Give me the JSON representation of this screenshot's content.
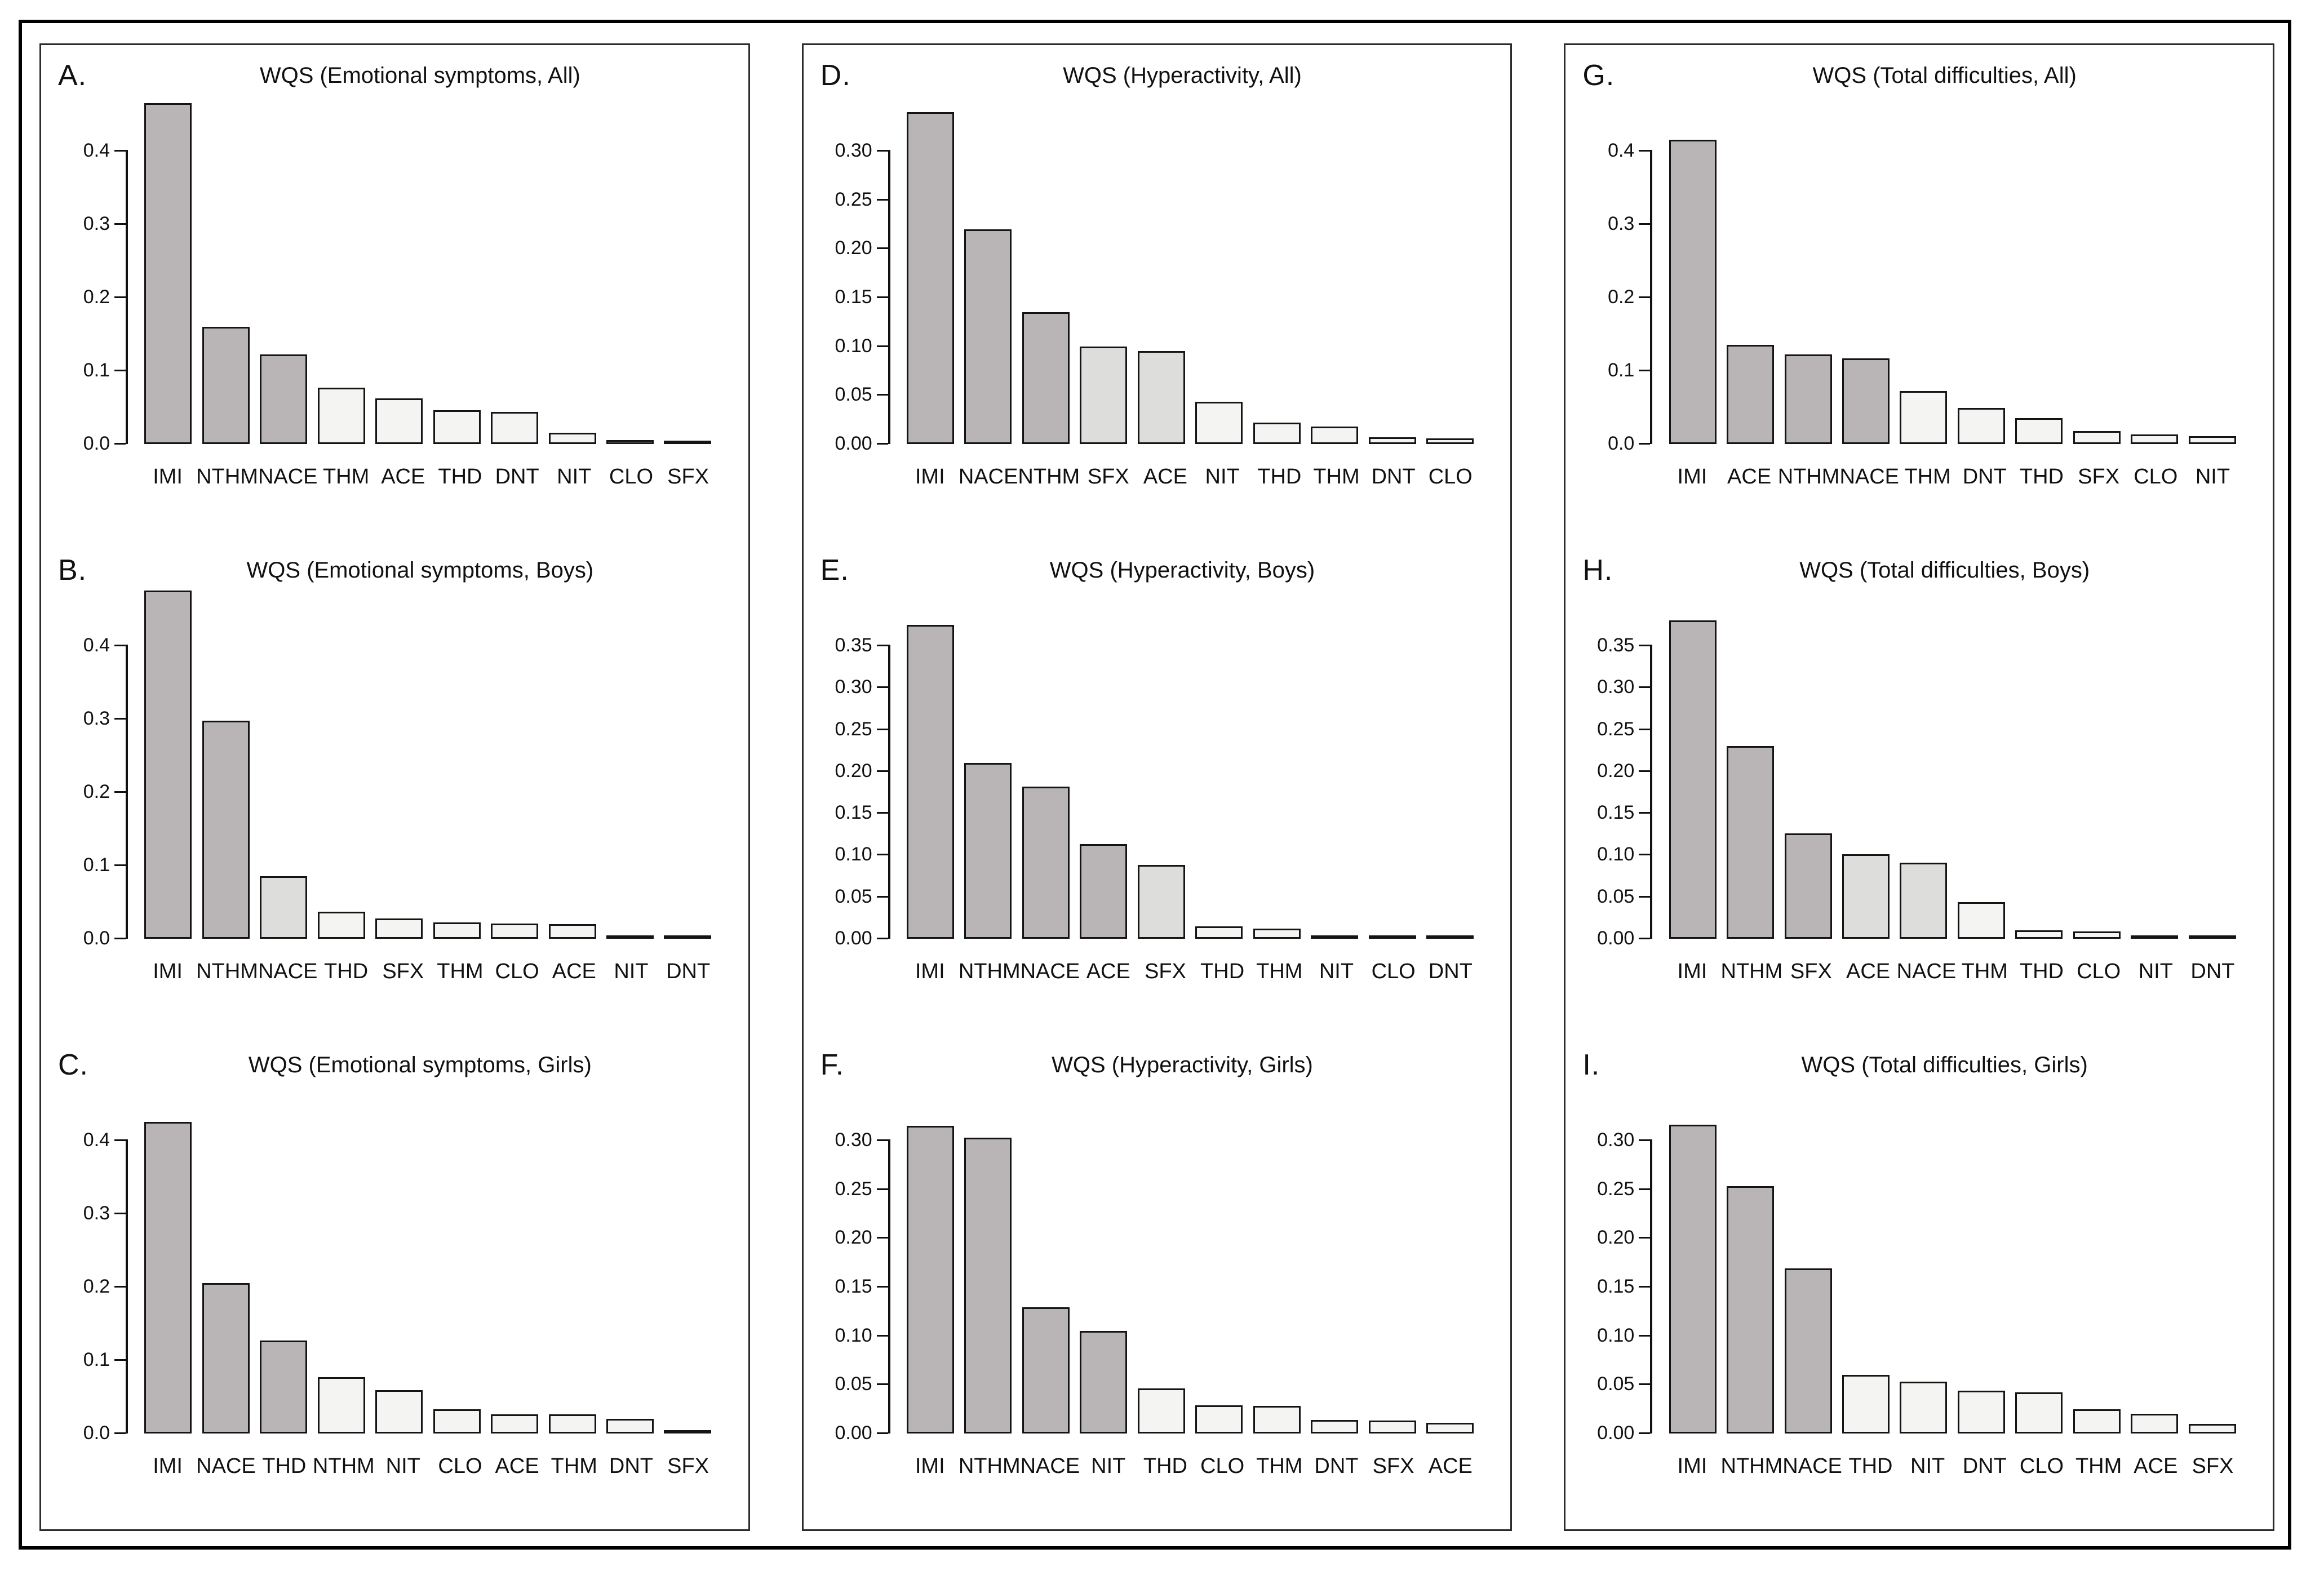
{
  "figure": {
    "background": "#ffffff",
    "outer_border_color": "#000000",
    "box_border_color": "#2b2b2b"
  },
  "palette": {
    "bar_dark": "#b9b5b6",
    "bar_mid": "#dddddb",
    "bar_light": "#f4f4f2",
    "bar_border": "#141414",
    "axis_color": "#111111",
    "text_color": "#111111"
  },
  "chart_data": [
    {
      "panel": "A",
      "letter": "A.",
      "title": "WQS (Emotional symptoms, All)",
      "type": "bar",
      "xlabel": "",
      "ylabel": "",
      "grid": false,
      "legend": "none",
      "ylim": [
        0,
        0.4
      ],
      "yticks": [
        {
          "label": "0.4",
          "value": 0.4
        },
        {
          "label": "0.3",
          "value": 0.3
        },
        {
          "label": "0.2",
          "value": 0.2
        },
        {
          "label": "0.1",
          "value": 0.1
        },
        {
          "label": "0.0",
          "value": 0.0
        }
      ],
      "bars": [
        {
          "label": "IMI",
          "value": 0.465,
          "tone": "dark"
        },
        {
          "label": "NTHM",
          "value": 0.16,
          "tone": "dark"
        },
        {
          "label": "NACE",
          "value": 0.122,
          "tone": "dark"
        },
        {
          "label": "THM",
          "value": 0.077,
          "tone": "light"
        },
        {
          "label": "ACE",
          "value": 0.062,
          "tone": "light"
        },
        {
          "label": "THD",
          "value": 0.046,
          "tone": "light"
        },
        {
          "label": "DNT",
          "value": 0.044,
          "tone": "light"
        },
        {
          "label": "NIT",
          "value": 0.015,
          "tone": "light"
        },
        {
          "label": "CLO",
          "value": 0.005,
          "tone": "light"
        },
        {
          "label": "SFX",
          "value": 0.002,
          "tone": "light"
        }
      ]
    },
    {
      "panel": "B",
      "letter": "B.",
      "title": "WQS (Emotional symptoms, Boys)",
      "type": "bar",
      "xlabel": "",
      "ylabel": "",
      "grid": false,
      "legend": "none",
      "ylim": [
        0,
        0.4
      ],
      "yticks": [
        {
          "label": "0.4",
          "value": 0.4
        },
        {
          "label": "0.3",
          "value": 0.3
        },
        {
          "label": "0.2",
          "value": 0.2
        },
        {
          "label": "0.1",
          "value": 0.1
        },
        {
          "label": "0.0",
          "value": 0.0
        }
      ],
      "bars": [
        {
          "label": "IMI",
          "value": 0.475,
          "tone": "dark"
        },
        {
          "label": "NTHM",
          "value": 0.298,
          "tone": "dark"
        },
        {
          "label": "NACE",
          "value": 0.085,
          "tone": "mid"
        },
        {
          "label": "THD",
          "value": 0.037,
          "tone": "light"
        },
        {
          "label": "SFX",
          "value": 0.028,
          "tone": "light"
        },
        {
          "label": "THM",
          "value": 0.022,
          "tone": "light"
        },
        {
          "label": "CLO",
          "value": 0.021,
          "tone": "light"
        },
        {
          "label": "ACE",
          "value": 0.02,
          "tone": "light"
        },
        {
          "label": "NIT",
          "value": 0.004,
          "tone": "light"
        },
        {
          "label": "DNT",
          "value": 0.002,
          "tone": "light"
        }
      ]
    },
    {
      "panel": "C",
      "letter": "C.",
      "title": "WQS (Emotional symptoms, Girls)",
      "type": "bar",
      "xlabel": "",
      "ylabel": "",
      "grid": false,
      "legend": "none",
      "ylim": [
        0,
        0.4
      ],
      "yticks": [
        {
          "label": "0.4",
          "value": 0.4
        },
        {
          "label": "0.3",
          "value": 0.3
        },
        {
          "label": "0.2",
          "value": 0.2
        },
        {
          "label": "0.1",
          "value": 0.1
        },
        {
          "label": "0.0",
          "value": 0.0
        }
      ],
      "bars": [
        {
          "label": "IMI",
          "value": 0.425,
          "tone": "dark"
        },
        {
          "label": "NACE",
          "value": 0.205,
          "tone": "dark"
        },
        {
          "label": "THD",
          "value": 0.127,
          "tone": "dark"
        },
        {
          "label": "NTHM",
          "value": 0.077,
          "tone": "light"
        },
        {
          "label": "NIT",
          "value": 0.059,
          "tone": "light"
        },
        {
          "label": "CLO",
          "value": 0.033,
          "tone": "light"
        },
        {
          "label": "ACE",
          "value": 0.026,
          "tone": "light"
        },
        {
          "label": "THM",
          "value": 0.026,
          "tone": "light"
        },
        {
          "label": "DNT",
          "value": 0.02,
          "tone": "light"
        },
        {
          "label": "SFX",
          "value": 0.003,
          "tone": "light"
        }
      ]
    },
    {
      "panel": "D",
      "letter": "D.",
      "title": "WQS (Hyperactivity, All)",
      "type": "bar",
      "xlabel": "",
      "ylabel": "",
      "grid": false,
      "legend": "none",
      "ylim": [
        0,
        0.3
      ],
      "yticks": [
        {
          "label": "0.30",
          "value": 0.3
        },
        {
          "label": "0.25",
          "value": 0.25
        },
        {
          "label": "0.20",
          "value": 0.2
        },
        {
          "label": "0.15",
          "value": 0.15
        },
        {
          "label": "0.10",
          "value": 0.1
        },
        {
          "label": "0.05",
          "value": 0.05
        },
        {
          "label": "0.00",
          "value": 0.0
        }
      ],
      "bars": [
        {
          "label": "IMI",
          "value": 0.34,
          "tone": "dark"
        },
        {
          "label": "NACE",
          "value": 0.22,
          "tone": "dark"
        },
        {
          "label": "NTHM",
          "value": 0.135,
          "tone": "dark"
        },
        {
          "label": "SFX",
          "value": 0.1,
          "tone": "mid"
        },
        {
          "label": "ACE",
          "value": 0.095,
          "tone": "mid"
        },
        {
          "label": "NIT",
          "value": 0.043,
          "tone": "light"
        },
        {
          "label": "THD",
          "value": 0.022,
          "tone": "light"
        },
        {
          "label": "THM",
          "value": 0.018,
          "tone": "light"
        },
        {
          "label": "DNT",
          "value": 0.007,
          "tone": "light"
        },
        {
          "label": "CLO",
          "value": 0.006,
          "tone": "light"
        }
      ]
    },
    {
      "panel": "E",
      "letter": "E.",
      "title": "WQS (Hyperactivity, Boys)",
      "type": "bar",
      "xlabel": "",
      "ylabel": "",
      "grid": false,
      "legend": "none",
      "ylim": [
        0,
        0.35
      ],
      "yticks": [
        {
          "label": "0.35",
          "value": 0.35
        },
        {
          "label": "0.30",
          "value": 0.3
        },
        {
          "label": "0.25",
          "value": 0.25
        },
        {
          "label": "0.20",
          "value": 0.2
        },
        {
          "label": "0.15",
          "value": 0.15
        },
        {
          "label": "0.10",
          "value": 0.1
        },
        {
          "label": "0.05",
          "value": 0.05
        },
        {
          "label": "0.00",
          "value": 0.0
        }
      ],
      "bars": [
        {
          "label": "IMI",
          "value": 0.375,
          "tone": "dark"
        },
        {
          "label": "NTHM",
          "value": 0.21,
          "tone": "dark"
        },
        {
          "label": "NACE",
          "value": 0.182,
          "tone": "dark"
        },
        {
          "label": "ACE",
          "value": 0.113,
          "tone": "dark"
        },
        {
          "label": "SFX",
          "value": 0.088,
          "tone": "mid"
        },
        {
          "label": "THD",
          "value": 0.015,
          "tone": "light"
        },
        {
          "label": "THM",
          "value": 0.012,
          "tone": "light"
        },
        {
          "label": "NIT",
          "value": 0.003,
          "tone": "light"
        },
        {
          "label": "CLO",
          "value": 0.003,
          "tone": "light"
        },
        {
          "label": "DNT",
          "value": 0.001,
          "tone": "light"
        }
      ]
    },
    {
      "panel": "F",
      "letter": "F.",
      "title": "WQS (Hyperactivity, Girls)",
      "type": "bar",
      "xlabel": "",
      "ylabel": "",
      "grid": false,
      "legend": "none",
      "ylim": [
        0,
        0.3
      ],
      "yticks": [
        {
          "label": "0.30",
          "value": 0.3
        },
        {
          "label": "0.25",
          "value": 0.25
        },
        {
          "label": "0.20",
          "value": 0.2
        },
        {
          "label": "0.15",
          "value": 0.15
        },
        {
          "label": "0.10",
          "value": 0.1
        },
        {
          "label": "0.05",
          "value": 0.05
        },
        {
          "label": "0.00",
          "value": 0.0
        }
      ],
      "bars": [
        {
          "label": "IMI",
          "value": 0.315,
          "tone": "dark"
        },
        {
          "label": "NTHM",
          "value": 0.303,
          "tone": "dark"
        },
        {
          "label": "NACE",
          "value": 0.129,
          "tone": "dark"
        },
        {
          "label": "NIT",
          "value": 0.105,
          "tone": "dark"
        },
        {
          "label": "THD",
          "value": 0.046,
          "tone": "light"
        },
        {
          "label": "CLO",
          "value": 0.029,
          "tone": "light"
        },
        {
          "label": "THM",
          "value": 0.028,
          "tone": "light"
        },
        {
          "label": "DNT",
          "value": 0.014,
          "tone": "light"
        },
        {
          "label": "SFX",
          "value": 0.013,
          "tone": "light"
        },
        {
          "label": "ACE",
          "value": 0.011,
          "tone": "light"
        }
      ]
    },
    {
      "panel": "G",
      "letter": "G.",
      "title": "WQS (Total difficulties, All)",
      "type": "bar",
      "xlabel": "",
      "ylabel": "",
      "grid": false,
      "legend": "none",
      "ylim": [
        0,
        0.4
      ],
      "yticks": [
        {
          "label": "0.4",
          "value": 0.4
        },
        {
          "label": "0.3",
          "value": 0.3
        },
        {
          "label": "0.2",
          "value": 0.2
        },
        {
          "label": "0.1",
          "value": 0.1
        },
        {
          "label": "0.0",
          "value": 0.0
        }
      ],
      "bars": [
        {
          "label": "IMI",
          "value": 0.415,
          "tone": "dark"
        },
        {
          "label": "ACE",
          "value": 0.135,
          "tone": "dark"
        },
        {
          "label": "NTHM",
          "value": 0.122,
          "tone": "dark"
        },
        {
          "label": "NACE",
          "value": 0.117,
          "tone": "dark"
        },
        {
          "label": "THM",
          "value": 0.072,
          "tone": "light"
        },
        {
          "label": "DNT",
          "value": 0.049,
          "tone": "light"
        },
        {
          "label": "THD",
          "value": 0.035,
          "tone": "light"
        },
        {
          "label": "SFX",
          "value": 0.018,
          "tone": "light"
        },
        {
          "label": "CLO",
          "value": 0.013,
          "tone": "light"
        },
        {
          "label": "NIT",
          "value": 0.011,
          "tone": "light"
        }
      ]
    },
    {
      "panel": "H",
      "letter": "H.",
      "title": "WQS (Total difficulties, Boys)",
      "type": "bar",
      "xlabel": "",
      "ylabel": "",
      "grid": false,
      "legend": "none",
      "ylim": [
        0,
        0.35
      ],
      "yticks": [
        {
          "label": "0.35",
          "value": 0.35
        },
        {
          "label": "0.30",
          "value": 0.3
        },
        {
          "label": "0.25",
          "value": 0.25
        },
        {
          "label": "0.20",
          "value": 0.2
        },
        {
          "label": "0.15",
          "value": 0.15
        },
        {
          "label": "0.10",
          "value": 0.1
        },
        {
          "label": "0.05",
          "value": 0.05
        },
        {
          "label": "0.00",
          "value": 0.0
        }
      ],
      "bars": [
        {
          "label": "IMI",
          "value": 0.38,
          "tone": "dark"
        },
        {
          "label": "NTHM",
          "value": 0.23,
          "tone": "dark"
        },
        {
          "label": "SFX",
          "value": 0.126,
          "tone": "dark"
        },
        {
          "label": "ACE",
          "value": 0.101,
          "tone": "mid"
        },
        {
          "label": "NACE",
          "value": 0.091,
          "tone": "mid"
        },
        {
          "label": "THM",
          "value": 0.044,
          "tone": "light"
        },
        {
          "label": "THD",
          "value": 0.01,
          "tone": "light"
        },
        {
          "label": "CLO",
          "value": 0.009,
          "tone": "light"
        },
        {
          "label": "NIT",
          "value": 0.004,
          "tone": "light"
        },
        {
          "label": "DNT",
          "value": 0.001,
          "tone": "light"
        }
      ]
    },
    {
      "panel": "I",
      "letter": "I.",
      "title": "WQS (Total difficulties, Girls)",
      "type": "bar",
      "xlabel": "",
      "ylabel": "",
      "grid": false,
      "legend": "none",
      "ylim": [
        0,
        0.3
      ],
      "yticks": [
        {
          "label": "0.30",
          "value": 0.3
        },
        {
          "label": "0.25",
          "value": 0.25
        },
        {
          "label": "0.20",
          "value": 0.2
        },
        {
          "label": "0.15",
          "value": 0.15
        },
        {
          "label": "0.10",
          "value": 0.1
        },
        {
          "label": "0.05",
          "value": 0.05
        },
        {
          "label": "0.00",
          "value": 0.0
        }
      ],
      "bars": [
        {
          "label": "IMI",
          "value": 0.316,
          "tone": "dark"
        },
        {
          "label": "NTHM",
          "value": 0.253,
          "tone": "dark"
        },
        {
          "label": "NACE",
          "value": 0.169,
          "tone": "dark"
        },
        {
          "label": "THD",
          "value": 0.06,
          "tone": "light"
        },
        {
          "label": "NIT",
          "value": 0.053,
          "tone": "light"
        },
        {
          "label": "DNT",
          "value": 0.044,
          "tone": "light"
        },
        {
          "label": "CLO",
          "value": 0.042,
          "tone": "light"
        },
        {
          "label": "THM",
          "value": 0.025,
          "tone": "light"
        },
        {
          "label": "ACE",
          "value": 0.02,
          "tone": "light"
        },
        {
          "label": "SFX",
          "value": 0.01,
          "tone": "light"
        }
      ]
    }
  ]
}
